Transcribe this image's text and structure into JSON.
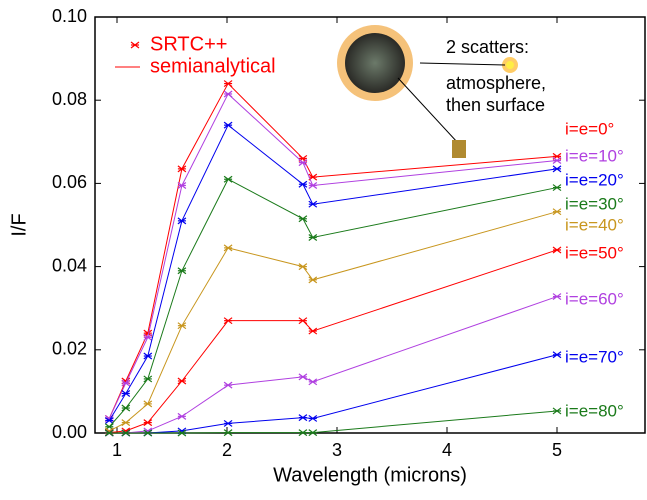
{
  "chart_data": {
    "type": "line",
    "xlabel": "Wavelength (microns)",
    "ylabel": "I/F",
    "x": [
      0.93,
      1.08,
      1.28,
      1.59,
      2.01,
      2.69,
      2.78,
      5.0
    ],
    "xlim": [
      0.8,
      5.8
    ],
    "xticks": [
      1,
      2,
      3,
      4,
      5
    ],
    "ylim": [
      0,
      0.1
    ],
    "yticks": [
      {
        "value": 0,
        "label": "0.00"
      },
      {
        "value": 0.02,
        "label": "0.02"
      },
      {
        "value": 0.04,
        "label": "0.04"
      },
      {
        "value": 0.06,
        "label": "0.06"
      },
      {
        "value": 0.08,
        "label": "0.08"
      },
      {
        "value": 0.1,
        "label": "0.10"
      }
    ],
    "legend": {
      "marker": "SRTC++",
      "line": "semianalytical",
      "color": "#ff0000"
    },
    "annotations": [
      "2 scatters:",
      "atmosphere,",
      "then surface"
    ],
    "series": [
      {
        "name": "i=e=0°",
        "color": "#ff0000",
        "values": [
          0.0035,
          0.0125,
          0.024,
          0.0635,
          0.084,
          0.066,
          0.0615,
          0.0665
        ]
      },
      {
        "name": "i=e=10°",
        "color": "#b040e0",
        "values": [
          0.0035,
          0.012,
          0.023,
          0.0595,
          0.0815,
          0.065,
          0.0595,
          0.0655
        ]
      },
      {
        "name": "i=e=20°",
        "color": "#0000ee",
        "values": [
          0.003,
          0.0095,
          0.0185,
          0.051,
          0.074,
          0.0598,
          0.055,
          0.0635
        ]
      },
      {
        "name": "i=e=30°",
        "color": "#1a7a1a",
        "values": [
          0.0015,
          0.006,
          0.013,
          0.039,
          0.061,
          0.0515,
          0.047,
          0.059
        ]
      },
      {
        "name": "i=e=40°",
        "color": "#c8961e",
        "values": [
          0.0005,
          0.0025,
          0.007,
          0.0258,
          0.0445,
          0.04,
          0.0368,
          0.0532
        ]
      },
      {
        "name": "i=e=50°",
        "color": "#ff0000",
        "values": [
          0.0001,
          0.0005,
          0.0025,
          0.0125,
          0.027,
          0.027,
          0.0245,
          0.044
        ]
      },
      {
        "name": "i=e=60°",
        "color": "#b040e0",
        "values": [
          0,
          0,
          0.0005,
          0.004,
          0.0115,
          0.0135,
          0.0123,
          0.0328
        ]
      },
      {
        "name": "i=e=70°",
        "color": "#0000ee",
        "values": [
          0,
          0,
          0,
          0.0005,
          0.0023,
          0.0037,
          0.0035,
          0.0188
        ]
      },
      {
        "name": "i=e=80°",
        "color": "#1a7a1a",
        "values": [
          0,
          0,
          0,
          0,
          0.0001,
          0.0001,
          0.0001,
          0.0053
        ]
      }
    ]
  }
}
